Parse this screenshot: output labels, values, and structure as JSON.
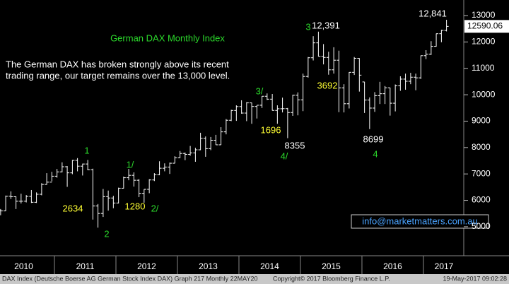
{
  "chart_data": {
    "type": "ohlc",
    "title": "German DAX Monthly Index",
    "subtitle": [
      "The German DAX has broken strongly above its recent",
      "trading range, our target remains over the 13,000 level."
    ],
    "annotations": [
      "1",
      "2634",
      "2",
      "1/",
      "1280",
      "2/",
      "3/",
      "1696",
      "8355",
      "4/",
      "3",
      "12,391",
      "3692",
      "8699",
      "4",
      "12,841"
    ],
    "contact": "info@marketmatters.com.au",
    "last_value": 12590.06,
    "footer": [
      "DAX Index (Deutsche Boerse AG German Stock Index DAX) Graph 217  Monthly 22MAY20",
      "Copyright© 2017 Bloomberg Finance L.P.",
      "19-May-2017 09:02:28"
    ],
    "color": "#ffffff",
    "xlim": [
      2010.115,
      2017.644
    ],
    "xticks": [
      {
        "value": 2010.5,
        "label": "2010"
      },
      {
        "value": 2011.5,
        "label": "2011"
      },
      {
        "value": 2012.5,
        "label": "2012"
      },
      {
        "value": 2013.5,
        "label": "2013"
      },
      {
        "value": 2014.5,
        "label": "2014"
      },
      {
        "value": 2015.5,
        "label": "2015"
      },
      {
        "value": 2016.5,
        "label": "2016"
      },
      {
        "value": 2017.5,
        "label": "2017"
      }
    ],
    "ylim": [
      3900,
      13590
    ],
    "yticks": [
      5000,
      6000,
      7000,
      8000,
      9000,
      10000,
      11000,
      12000,
      13000
    ],
    "x": [
      2010.125,
      2010.208,
      2010.292,
      2010.375,
      2010.458,
      2010.542,
      2010.625,
      2010.708,
      2010.792,
      2010.875,
      2010.958,
      2011.042,
      2011.125,
      2011.208,
      2011.292,
      2011.375,
      2011.458,
      2011.542,
      2011.625,
      2011.708,
      2011.792,
      2011.875,
      2011.958,
      2012.042,
      2012.125,
      2012.208,
      2012.292,
      2012.375,
      2012.458,
      2012.542,
      2012.625,
      2012.708,
      2012.792,
      2012.875,
      2012.958,
      2013.042,
      2013.125,
      2013.208,
      2013.292,
      2013.375,
      2013.458,
      2013.542,
      2013.625,
      2013.708,
      2013.792,
      2013.875,
      2013.958,
      2014.042,
      2014.125,
      2014.208,
      2014.292,
      2014.375,
      2014.458,
      2014.542,
      2014.625,
      2014.708,
      2014.792,
      2014.875,
      2014.958,
      2015.042,
      2015.125,
      2015.208,
      2015.292,
      2015.375,
      2015.458,
      2015.542,
      2015.625,
      2015.708,
      2015.792,
      2015.875,
      2015.958,
      2016.042,
      2016.125,
      2016.208,
      2016.292,
      2016.375,
      2016.458,
      2016.542,
      2016.625,
      2016.708,
      2016.792,
      2016.875,
      2016.958,
      2017.042,
      2017.125,
      2017.208,
      2017.292,
      2017.375
    ],
    "open": [
      5608,
      5598,
      6154,
      6136,
      5965,
      5966,
      6148,
      5925,
      6229,
      6601,
      6688,
      6914,
      7077,
      7272,
      7041,
      7514,
      7294,
      7376,
      7159,
      5785,
      5502,
      6141,
      6088,
      5898,
      6458,
      6856,
      6947,
      6761,
      6264,
      6416,
      6772,
      6970,
      7216,
      7260,
      7405,
      7612,
      7776,
      7742,
      7795,
      7914,
      8349,
      7959,
      8276,
      8103,
      8594,
      9033,
      9406,
      9552,
      9306,
      9692,
      9556,
      9603,
      9943,
      9833,
      9407,
      9470,
      9474,
      9327,
      9981,
      9806,
      10694,
      11402,
      11966,
      11454,
      11414,
      10945,
      11309,
      10259,
      9660,
      10850,
      11382,
      10486,
      9798,
      9495,
      9966,
      10039,
      10263,
      9680,
      10337,
      10593,
      10511,
      10665,
      10640,
      11481,
      11535,
      11834,
      12313,
      12438
    ],
    "high": [
      5670,
      6180,
      6340,
      6150,
      6250,
      6200,
      6390,
      6300,
      6650,
      7030,
      7080,
      7190,
      7440,
      7300,
      7530,
      7600,
      7390,
      7530,
      7200,
      5860,
      6430,
      6370,
      6170,
      6480,
      6900,
      7190,
      7060,
      6800,
      6420,
      6800,
      7030,
      7480,
      7400,
      7430,
      7670,
      7870,
      7810,
      8060,
      7990,
      8560,
      8420,
      8400,
      8480,
      8770,
      9080,
      9430,
      9600,
      9790,
      9720,
      9700,
      9600,
      9950,
      10050,
      10030,
      9600,
      9890,
      9500,
      10000,
      10090,
      10800,
      11430,
      12220,
      12391,
      11920,
      11630,
      11800,
      11670,
      10400,
      10860,
      11430,
      11390,
      10490,
      9900,
      10100,
      10490,
      10330,
      10270,
      10390,
      10700,
      10800,
      10830,
      10800,
      11490,
      11690,
      12030,
      12320,
      12460,
      12841
    ],
    "low": [
      5434,
      5590,
      6050,
      5670,
      5880,
      5920,
      5900,
      5900,
      6190,
      6590,
      6720,
      6860,
      7060,
      6510,
      6990,
      7100,
      6940,
      7140,
      5270,
      4965,
      5370,
      5610,
      5700,
      5880,
      6450,
      6760,
      6520,
      6120,
      5910,
      6270,
      6730,
      6950,
      7100,
      7000,
      7400,
      7600,
      7520,
      7690,
      7460,
      7900,
      7650,
      7900,
      8100,
      8100,
      8500,
      9000,
      9010,
      9280,
      9000,
      8900,
      9100,
      9500,
      9800,
      9400,
      8900,
      9330,
      8355,
      9200,
      9220,
      9380,
      10650,
      11300,
      11450,
      11150,
      10760,
      10800,
      9340,
      9330,
      9480,
      10750,
      10120,
      9310,
      8699,
      9350,
      9650,
      9650,
      9210,
      9370,
      10150,
      10190,
      10400,
      10170,
      10600,
      11350,
      11510,
      11820,
      11990,
      12400
    ],
    "close": [
      5598,
      6154,
      6136,
      5965,
      5966,
      6148,
      5925,
      6229,
      6601,
      6688,
      6914,
      7077,
      7272,
      7041,
      7514,
      7294,
      7376,
      7159,
      5785,
      5502,
      6141,
      6088,
      5898,
      6458,
      6856,
      6947,
      6761,
      6264,
      6416,
      6772,
      6970,
      7216,
      7260,
      7405,
      7612,
      7776,
      7742,
      7795,
      7914,
      8349,
      7959,
      8276,
      8103,
      8594,
      9033,
      9406,
      9552,
      9306,
      9692,
      9556,
      9603,
      9943,
      9833,
      9407,
      9470,
      9474,
      9327,
      9981,
      9806,
      10694,
      11402,
      11966,
      11454,
      11414,
      10945,
      11309,
      10259,
      9660,
      10850,
      11382,
      10743,
      9798,
      9495,
      9966,
      10039,
      10263,
      9680,
      10337,
      10593,
      10511,
      10665,
      10640,
      11481,
      11535,
      11834,
      12313,
      12438,
      12590
    ]
  }
}
